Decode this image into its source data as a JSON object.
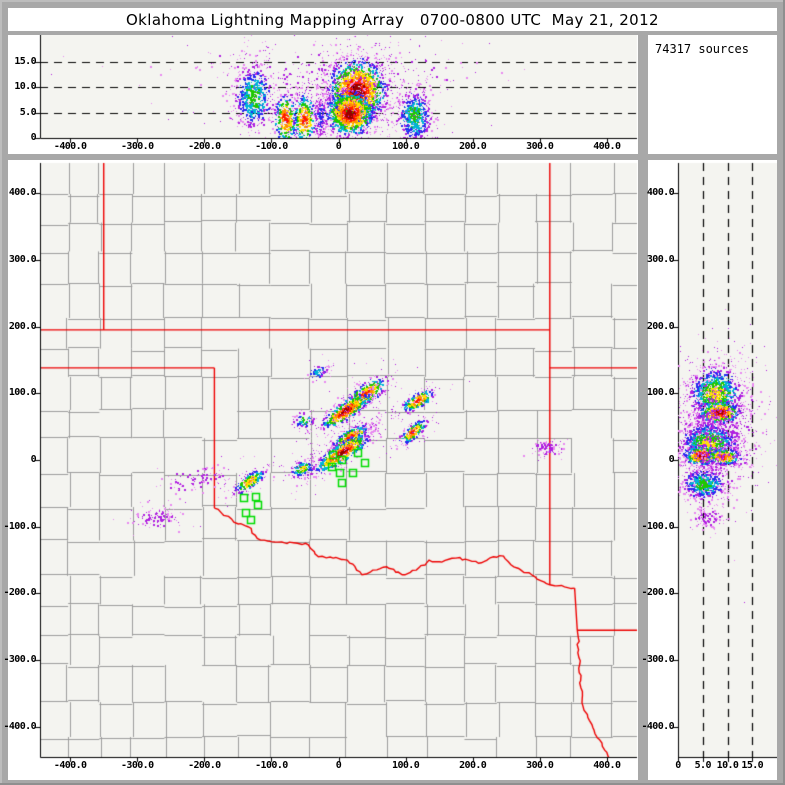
{
  "window": {
    "title": "Oklahoma Lightning Mapping Array   0700-0800 UTC  May 21, 2012"
  },
  "info_panel": {
    "sources_label": "74317 sources"
  },
  "colors": {
    "window_background": "#a8a8a8",
    "panel_background": "#ffffff",
    "plot_background": "#f4f4f0",
    "county_line": "#9c9c9c",
    "state_border": "#ee0000",
    "station_marker": "#00dd00",
    "axis": "#000000",
    "palette": {
      "darkred": "#990000",
      "red": "#ff1800",
      "orange": "#ff9000",
      "yellow": "#ffe400",
      "green": "#1ec800",
      "cyan": "#00b4d8",
      "blue": "#2828f0",
      "purple": "#b020e0",
      "lightpurple": "#e88af0"
    }
  },
  "axes": {
    "km_ticks": {
      "values": [
        -400,
        -300,
        -200,
        -100,
        0,
        100,
        200,
        300,
        400
      ],
      "labels": [
        "-400.0",
        "-300.0",
        "-200.0",
        "-100.0",
        "0",
        "100.0",
        "200.0",
        "300.0",
        "400.0"
      ]
    },
    "ns_ticks": {
      "values": [
        400,
        300,
        200,
        100,
        0,
        -100,
        -200,
        -300,
        -400
      ],
      "labels": [
        "400.0",
        "300.0",
        "200.0",
        "100.0",
        "0",
        "-100.0",
        "-200.0",
        "-300.0",
        "-400.0"
      ]
    },
    "alt_ticks": {
      "values": [
        0,
        5,
        10,
        15
      ],
      "labels": [
        "0",
        "5.0",
        "10.0",
        "15.0"
      ]
    },
    "alt_ticks_desc": {
      "values": [
        15,
        10,
        5,
        0
      ],
      "labels": [
        "15.0",
        "10.0",
        "5.0",
        "0"
      ]
    },
    "alt_grid_km": [
      5,
      10,
      15
    ]
  },
  "chart_data": {
    "total_sources": 74317,
    "panels": [
      {
        "id": "ew_altitude_cross_section",
        "type": "scatter",
        "x": "east_west_km",
        "y": "altitude_km",
        "x_range": [
          -445,
          445
        ],
        "y_range": [
          0,
          20.3
        ],
        "grid_altitudes_km": [
          5,
          10,
          15
        ],
        "clusters": [
          {
            "x": -128,
            "alt": 8.2,
            "sx": 13,
            "salt": 3.0,
            "n": 520,
            "max": "green"
          },
          {
            "x": -80,
            "alt": 3.8,
            "sx": 8,
            "salt": 2.4,
            "n": 300,
            "max": "red"
          },
          {
            "x": -52,
            "alt": 3.8,
            "sx": 8,
            "salt": 2.4,
            "n": 280,
            "max": "red"
          },
          {
            "x": -28,
            "alt": 4.2,
            "sx": 4,
            "salt": 2.2,
            "n": 150,
            "max": "blue"
          },
          {
            "x": 27,
            "alt": 9.6,
            "sx": 21,
            "salt": 2.9,
            "n": 1600,
            "max": "darkred"
          },
          {
            "x": 16,
            "alt": 5.0,
            "sx": 17,
            "salt": 2.1,
            "n": 1100,
            "max": "darkred"
          },
          {
            "x": 112,
            "alt": 4.4,
            "sx": 12,
            "salt": 2.4,
            "n": 520,
            "max": "green"
          },
          {
            "x": -10,
            "alt": 13.5,
            "sx": 110,
            "salt": 2.2,
            "n": 160,
            "max": "purple"
          }
        ]
      },
      {
        "id": "plan_view",
        "type": "scatter",
        "x": "east_west_km",
        "y": "north_south_km",
        "x_range": [
          -445,
          445
        ],
        "y_range": [
          -445,
          445
        ],
        "clusters": [
          {
            "x": 39,
            "y": 100,
            "sx": 18,
            "sy": 7,
            "angle": 35,
            "n": 350,
            "max": "red"
          },
          {
            "x": 10,
            "y": 75,
            "sx": 20,
            "sy": 6,
            "angle": 35,
            "n": 420,
            "max": "darkred"
          },
          {
            "x": 117,
            "y": 90,
            "sx": 13,
            "sy": 5,
            "angle": 30,
            "n": 200,
            "max": "red"
          },
          {
            "x": 110,
            "y": 43,
            "sx": 12,
            "sy": 4.5,
            "angle": 40,
            "n": 220,
            "max": "red"
          },
          {
            "x": 17,
            "y": 36,
            "sx": 15,
            "sy": 5,
            "angle": 30,
            "n": 300,
            "max": "red"
          },
          {
            "x": 4,
            "y": 12,
            "sx": 23,
            "sy": 6.5,
            "angle": 35,
            "n": 560,
            "max": "darkred"
          },
          {
            "x": -52,
            "y": 60,
            "sx": 7,
            "sy": 6,
            "angle": 0,
            "n": 60,
            "max": "green"
          },
          {
            "x": -55,
            "y": -12,
            "sx": 9,
            "sy": 5,
            "angle": 20,
            "n": 150,
            "max": "yellow"
          },
          {
            "x": -133,
            "y": -31,
            "sx": 13,
            "sy": 5,
            "angle": 35,
            "n": 230,
            "max": "orange"
          },
          {
            "x": -31,
            "y": 133,
            "sx": 8,
            "sy": 5,
            "angle": 30,
            "n": 60,
            "max": "cyan"
          },
          {
            "x": -271,
            "y": -85,
            "sx": 18,
            "sy": 8,
            "angle": 0,
            "n": 90,
            "max": "purple"
          },
          {
            "x": -215,
            "y": -28,
            "sx": 25,
            "sy": 10,
            "angle": 10,
            "n": 80,
            "max": "purple"
          },
          {
            "x": 309,
            "y": 19,
            "sx": 12,
            "sy": 6,
            "angle": 0,
            "n": 70,
            "max": "purple"
          }
        ],
        "stations_km": [
          [
            -8,
            7
          ],
          [
            5,
            0
          ],
          [
            -10,
            -10
          ],
          [
            2,
            -19
          ],
          [
            21,
            -19
          ],
          [
            5,
            -34
          ],
          [
            29,
            10
          ],
          [
            39,
            -4
          ],
          [
            -141,
            -57
          ],
          [
            -123,
            -55
          ],
          [
            -120,
            -67
          ],
          [
            -138,
            -79
          ],
          [
            -131,
            -90
          ]
        ]
      },
      {
        "id": "ns_altitude_cross_section",
        "type": "scatter",
        "x": "altitude_km",
        "y": "north_south_km",
        "x_range": [
          0,
          20
        ],
        "y_range": [
          -445,
          445
        ],
        "grid_altitudes_km": [
          5,
          10,
          15
        ],
        "clusters": [
          {
            "alt": 7.4,
            "y": 100,
            "salt": 2.5,
            "sy": 19,
            "n": 950,
            "max": "yellow"
          },
          {
            "alt": 8.2,
            "y": 72,
            "salt": 2.0,
            "sy": 8,
            "n": 420,
            "max": "darkred"
          },
          {
            "alt": 6.0,
            "y": 25,
            "salt": 2.7,
            "sy": 15,
            "n": 950,
            "max": "yellow"
          },
          {
            "alt": 4.6,
            "y": 8,
            "salt": 1.7,
            "sy": 7,
            "n": 380,
            "max": "darkred"
          },
          {
            "alt": 9.0,
            "y": 6,
            "salt": 1.7,
            "sy": 6,
            "n": 300,
            "max": "red"
          },
          {
            "alt": 5.0,
            "y": -35,
            "salt": 2.1,
            "sy": 11,
            "n": 480,
            "max": "green"
          },
          {
            "alt": 8.0,
            "y": 45,
            "salt": 4.2,
            "sy": 45,
            "n": 380,
            "max": "purple"
          },
          {
            "alt": 5.5,
            "y": -85,
            "salt": 1.5,
            "sy": 6,
            "n": 80,
            "max": "purple"
          }
        ]
      }
    ]
  },
  "map": {
    "state_borders": [
      {
        "name": "colorado-kansas",
        "wiggle": false,
        "points": [
          [
            -350,
            445
          ],
          [
            -350,
            195
          ]
        ]
      },
      {
        "name": "kansas-oklahoma",
        "wiggle": false,
        "points": [
          [
            -445,
            195
          ],
          [
            315,
            195
          ]
        ]
      },
      {
        "name": "missouri-west",
        "wiggle": false,
        "points": [
          [
            315,
            445
          ],
          [
            315,
            -187
          ]
        ]
      },
      {
        "name": "panhandle-south",
        "wiggle": false,
        "points": [
          [
            -445,
            138
          ],
          [
            -185,
            138
          ]
        ]
      },
      {
        "name": "texas-100w",
        "wiggle": false,
        "points": [
          [
            -185,
            138
          ],
          [
            -185,
            -72
          ]
        ]
      },
      {
        "name": "missouri-arkansas",
        "wiggle": false,
        "points": [
          [
            315,
            138
          ],
          [
            445,
            138
          ]
        ]
      },
      {
        "name": "red-river",
        "wiggle": true,
        "points": [
          [
            -185,
            -72
          ],
          [
            -156,
            -93
          ],
          [
            -135,
            -100
          ],
          [
            -116,
            -120
          ],
          [
            -91,
            -123
          ],
          [
            -67,
            -124
          ],
          [
            -45,
            -127
          ],
          [
            -30,
            -145
          ],
          [
            -8,
            -147
          ],
          [
            13,
            -150
          ],
          [
            35,
            -172
          ],
          [
            51,
            -165
          ],
          [
            72,
            -160
          ],
          [
            95,
            -172
          ],
          [
            116,
            -165
          ],
          [
            135,
            -150
          ],
          [
            154,
            -153
          ],
          [
            175,
            -147
          ],
          [
            194,
            -150
          ],
          [
            213,
            -154
          ],
          [
            231,
            -145
          ],
          [
            246,
            -144
          ],
          [
            257,
            -157
          ],
          [
            272,
            -165
          ],
          [
            293,
            -175
          ],
          [
            307,
            -183
          ],
          [
            315,
            -187
          ],
          [
            337,
            -190
          ],
          [
            352,
            -192
          ]
        ]
      },
      {
        "name": "texas-arkansas",
        "wiggle": false,
        "points": [
          [
            352,
            -192
          ],
          [
            356,
            -255
          ]
        ]
      },
      {
        "name": "arkansas-louisiana",
        "wiggle": false,
        "points": [
          [
            356,
            -255
          ],
          [
            445,
            -255
          ]
        ]
      },
      {
        "name": "texas-louisiana",
        "wiggle": true,
        "points": [
          [
            356,
            -255
          ],
          [
            363,
            -364
          ],
          [
            374,
            -390
          ],
          [
            381,
            -405
          ],
          [
            400,
            -438
          ],
          [
            405,
            -448
          ]
        ]
      }
    ]
  }
}
